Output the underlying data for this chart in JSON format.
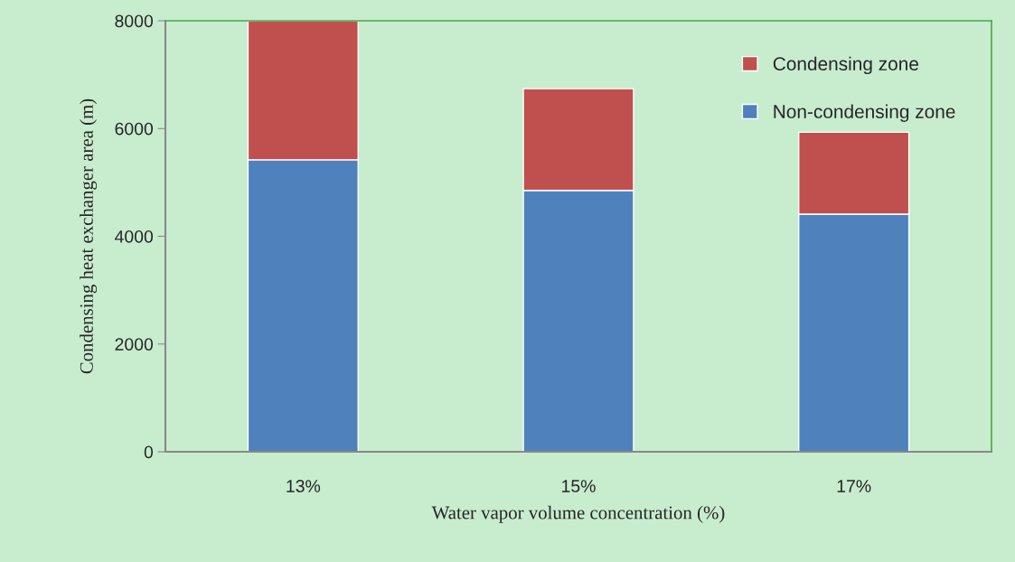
{
  "chart_data": {
    "type": "bar",
    "stacked": true,
    "xlabel": "Water vapor volume concentration (%)",
    "ylabel": "Condensing heat exchanger area (m)",
    "categories": [
      "13%",
      "15%",
      "17%"
    ],
    "series": [
      {
        "name": "Non-condensing zone",
        "color": "#4f81bd",
        "values": [
          5420,
          4850,
          4410
        ]
      },
      {
        "name": "Condensing zone",
        "color": "#c0504d",
        "values": [
          2580,
          1890,
          1520
        ]
      }
    ],
    "ylim": [
      0,
      8000
    ],
    "yticks": [
      0,
      2000,
      4000,
      6000,
      8000
    ],
    "grid": false,
    "legend": "top right"
  }
}
